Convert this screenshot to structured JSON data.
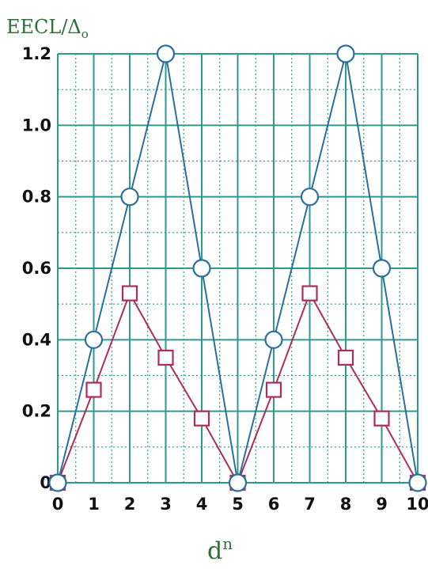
{
  "chart_data": {
    "type": "line",
    "ylabel": {
      "main": "EECL/Δ",
      "sub": "o"
    },
    "xlabel": {
      "main": "d",
      "sup": "n"
    },
    "x": [
      0,
      1,
      2,
      3,
      4,
      5,
      6,
      7,
      8,
      9,
      10
    ],
    "x_ticks": [
      "0",
      "1",
      "2",
      "3",
      "4",
      "5",
      "6",
      "7",
      "8",
      "9",
      "10"
    ],
    "y_ticks": [
      "0",
      "0.2",
      "0.4",
      "0.6",
      "0.8",
      "1.0",
      "1.2"
    ],
    "y_tick_values": [
      0,
      0.2,
      0.4,
      0.6,
      0.8,
      1.0,
      1.2
    ],
    "xlim": [
      0,
      10
    ],
    "ylim": [
      0,
      1.2
    ],
    "grid": true,
    "series": [
      {
        "marker": "circle",
        "color": "#2a6fa0",
        "values": [
          0,
          0.4,
          0.8,
          1.2,
          0.6,
          0,
          0.4,
          0.8,
          1.2,
          0.6,
          0
        ]
      },
      {
        "marker": "square",
        "color": "#b02c5a",
        "values": [
          0,
          0.26,
          0.53,
          0.35,
          0.18,
          0,
          0.26,
          0.53,
          0.35,
          0.18,
          0
        ]
      }
    ],
    "colors": {
      "grid": "#2e9a8c",
      "axis_label": "#2f6f3a"
    }
  }
}
